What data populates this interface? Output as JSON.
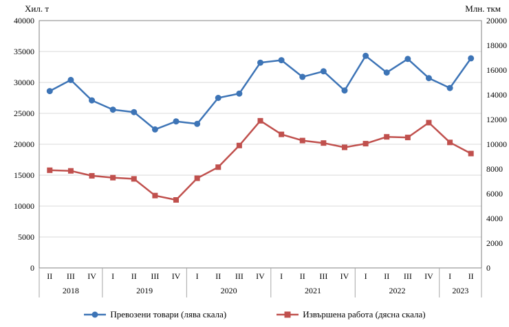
{
  "chart_data": {
    "type": "line",
    "title": "",
    "grid": true,
    "legend_position": "bottom",
    "left_axis": {
      "title": "Хил. т",
      "range": [
        0,
        40000
      ],
      "tick_step": 5000,
      "ticks": [
        0,
        5000,
        10000,
        15000,
        20000,
        25000,
        30000,
        35000,
        40000
      ]
    },
    "right_axis": {
      "title": "Млн. ткм",
      "range": [
        0,
        20000
      ],
      "tick_step": 2000,
      "ticks": [
        0,
        2000,
        4000,
        6000,
        8000,
        10000,
        12000,
        14000,
        16000,
        18000,
        20000
      ]
    },
    "quarters": [
      "II",
      "III",
      "IV",
      "I",
      "II",
      "III",
      "IV",
      "I",
      "II",
      "III",
      "IV",
      "I",
      "II",
      "III",
      "IV",
      "I",
      "II",
      "III",
      "IV",
      "I",
      "II"
    ],
    "years": [
      {
        "label": "2018",
        "span": 3
      },
      {
        "label": "2019",
        "span": 4
      },
      {
        "label": "2020",
        "span": 4
      },
      {
        "label": "2021",
        "span": 4
      },
      {
        "label": "2022",
        "span": 4
      },
      {
        "label": "2023",
        "span": 2
      }
    ],
    "series": [
      {
        "name": "Превозени  товари (лява скала)",
        "axis": "left",
        "color": "#3D74B6",
        "marker": "circle",
        "values": [
          28600,
          30400,
          27100,
          25600,
          25200,
          22400,
          23700,
          23300,
          27500,
          28200,
          33200,
          33600,
          30900,
          31800,
          28700,
          34300,
          31600,
          33800,
          30700,
          29100,
          33900
        ]
      },
      {
        "name": "Извършена  работа (дясна скала)",
        "axis": "right",
        "color": "#C0504D",
        "marker": "square",
        "values": [
          7900,
          7850,
          7450,
          7300,
          7200,
          5850,
          5500,
          7250,
          8150,
          9900,
          11900,
          10800,
          10300,
          10100,
          9750,
          10050,
          10600,
          10550,
          11750,
          10150,
          9250
        ]
      }
    ]
  }
}
